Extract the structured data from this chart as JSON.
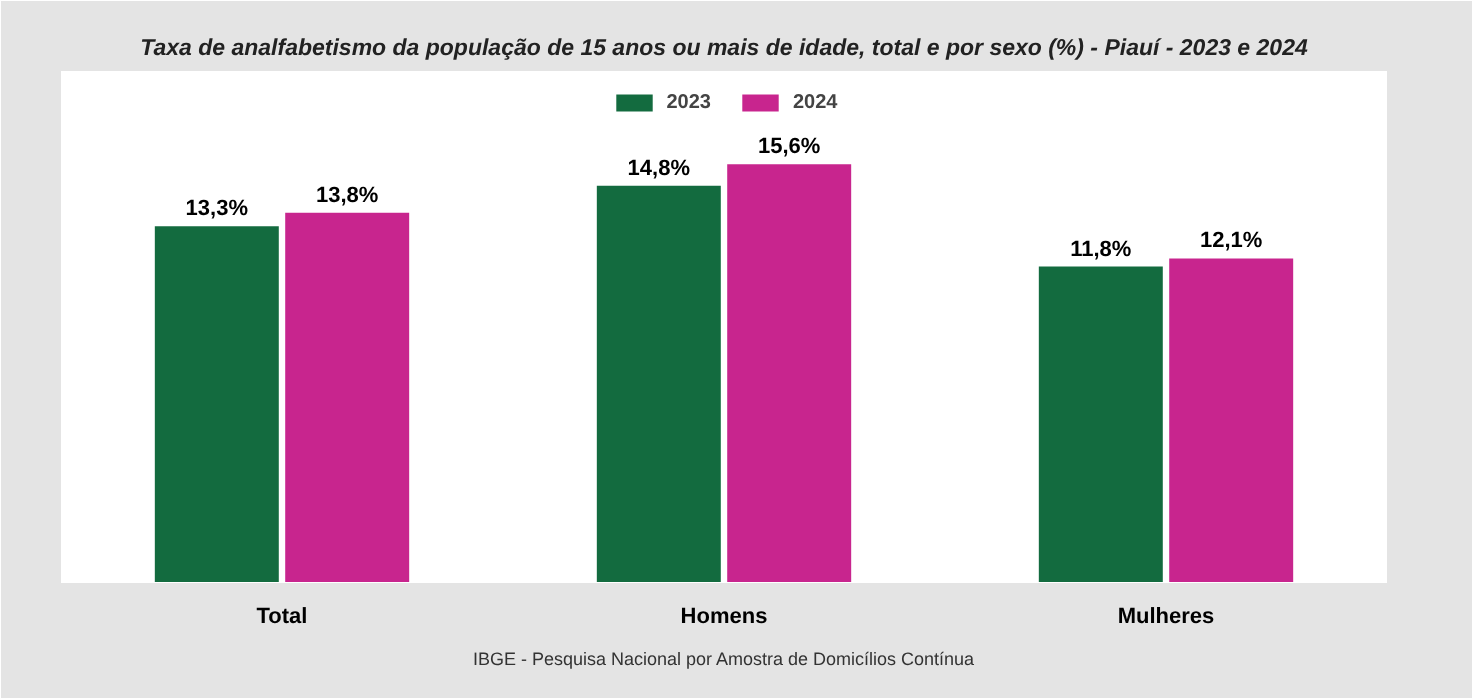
{
  "chart_data": {
    "type": "bar",
    "title": "Taxa de analfabetismo da população de 15 anos ou mais de idade, total e por sexo (%) - Piauí - 2023 e 2024",
    "categories": [
      "Total",
      "Homens",
      "Mulheres"
    ],
    "series": [
      {
        "name": "2023",
        "color": "#136b3f",
        "values": [
          13.3,
          14.8,
          11.8
        ],
        "value_labels": [
          "13,3%",
          "14,8%",
          "11,8%"
        ]
      },
      {
        "name": "2024",
        "color": "#c8258e",
        "values": [
          13.8,
          15.6,
          12.1
        ],
        "value_labels": [
          "13,8%",
          "15,6%",
          "12,1%"
        ]
      }
    ],
    "grid": false,
    "legend": "top",
    "annotations": [
      "IBGE - Pesquisa Nacional por Amostra de Domicílios Contínua"
    ]
  }
}
